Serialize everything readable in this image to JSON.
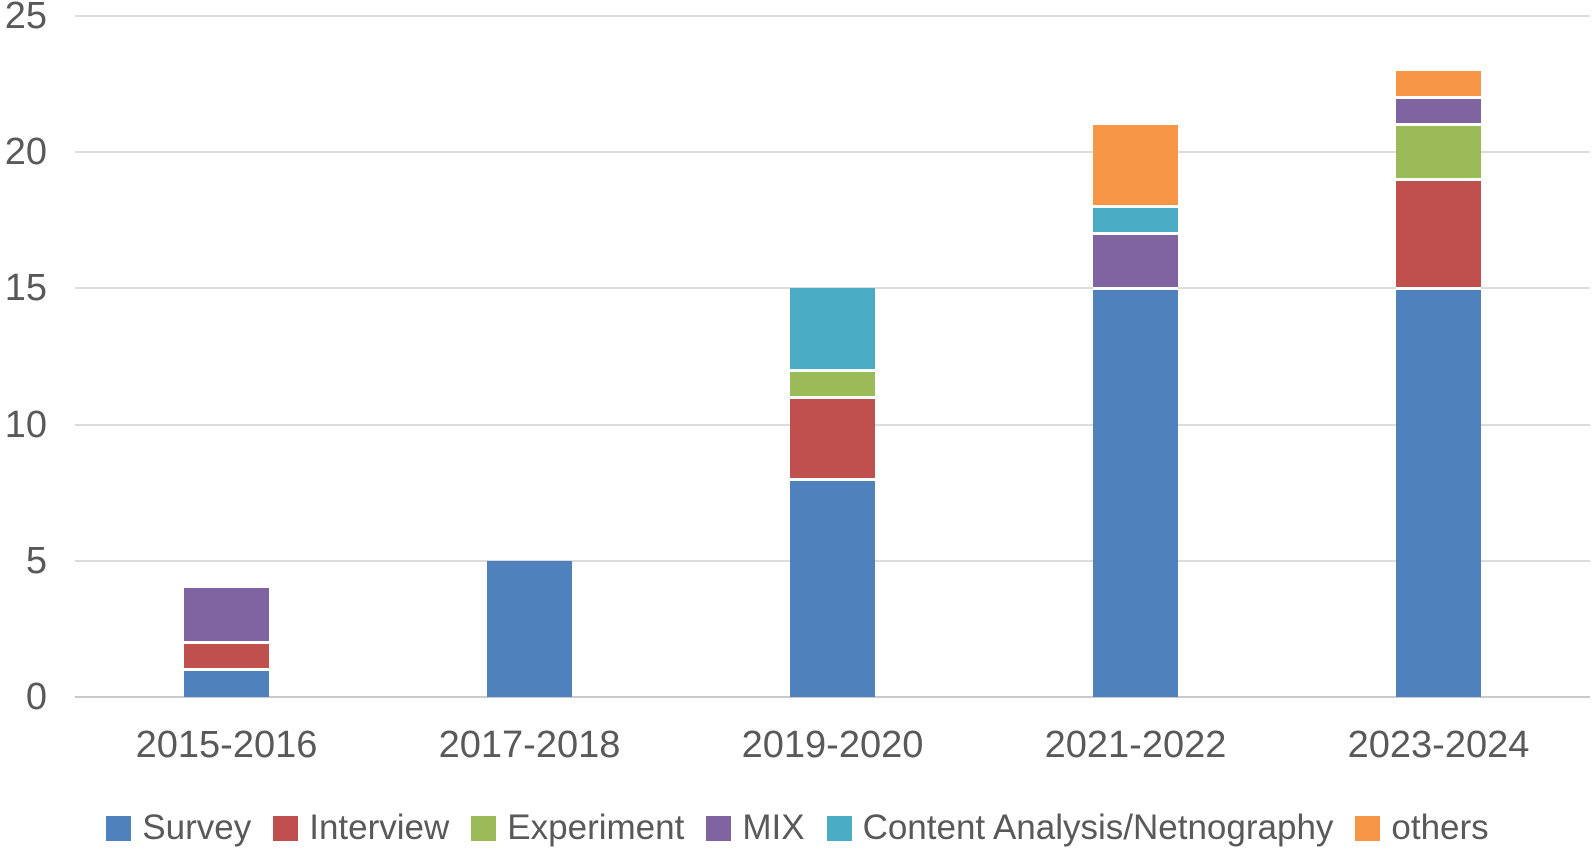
{
  "chart_data": {
    "type": "bar",
    "stacked": true,
    "title": "",
    "xlabel": "",
    "ylabel": "",
    "categories": [
      "2015-2016",
      "2017-2018",
      "2019-2020",
      "2021-2022",
      "2023-2024"
    ],
    "series": [
      {
        "name": "Survey",
        "color": "#4F81BD",
        "values": [
          1,
          5,
          8,
          15,
          15
        ]
      },
      {
        "name": "Interview",
        "color": "#C0504D",
        "values": [
          1,
          0,
          3,
          0,
          4
        ]
      },
      {
        "name": "Experiment",
        "color": "#9BBB59",
        "values": [
          0,
          0,
          1,
          0,
          2
        ]
      },
      {
        "name": "MIX",
        "color": "#8064A2",
        "values": [
          2,
          0,
          0,
          2,
          1
        ]
      },
      {
        "name": "Content Analysis/Netnography",
        "color": "#4BACC6",
        "values": [
          0,
          0,
          3,
          1,
          0
        ]
      },
      {
        "name": "others",
        "color": "#F79646",
        "values": [
          0,
          0,
          0,
          3,
          1
        ]
      }
    ],
    "totals": [
      4,
      5,
      15,
      21,
      23
    ],
    "ylim": [
      0,
      25
    ],
    "yticks": [
      0,
      5,
      10,
      15,
      20,
      25
    ],
    "grid": true,
    "legend_position": "bottom"
  },
  "style": {
    "text_color": "#595959",
    "gridline_color": "#DCDCDC",
    "axis_line_color": "#C9C9C9",
    "background": "#FFFFFF"
  }
}
